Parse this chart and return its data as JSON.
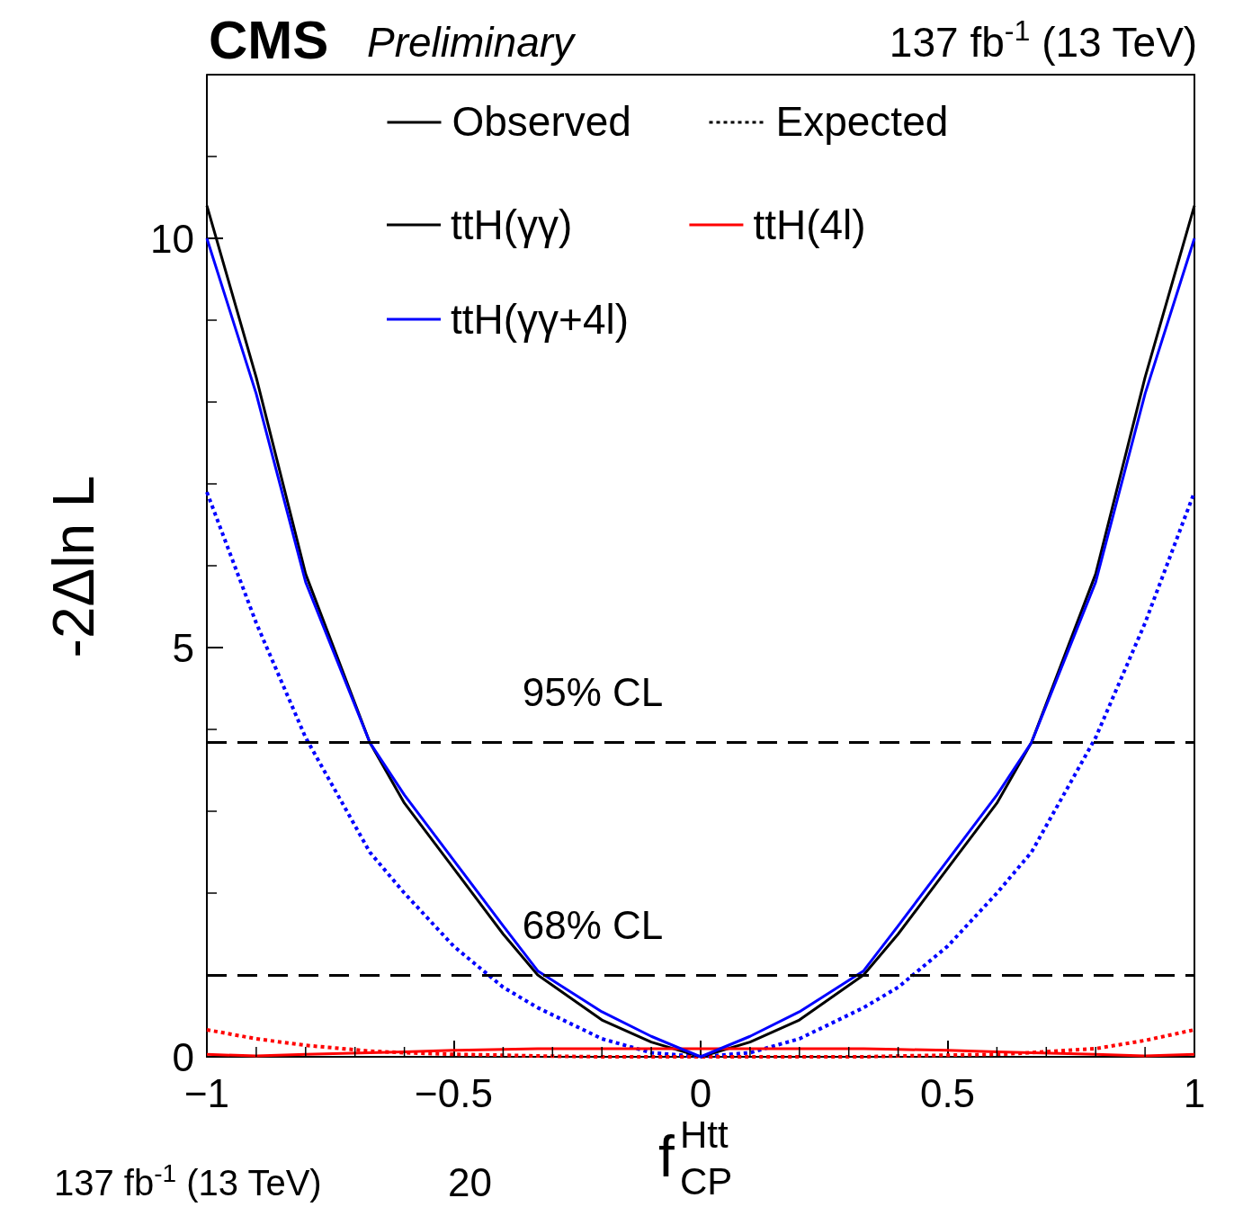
{
  "chart_data": {
    "type": "line",
    "title": "CMS",
    "subtitle": "Preliminary",
    "xlabel": "f$^{Htt}$$_{CP}$",
    "ylabel": "-2Δln L",
    "annotations": [
      "137 fb$^{-1}$ (13 TeV)",
      "Observed",
      "Expected",
      "137 fb$^{-1}$ (13 TeV)",
      "20"
    ],
    "xlim": [
      -1,
      1
    ],
    "xticks": [
      {
        "value": -1,
        "label": "−1"
      },
      {
        "value": -0.5,
        "label": "−0.5"
      },
      0,
      0.5,
      1
    ],
    "ylim": [
      0,
      12
    ],
    "yticks": [
      0,
      5,
      10
    ],
    "grid": false,
    "legend": "top",
    "marker": "none",
    "x": [
      -1,
      -0.9,
      -0.8,
      -0.67,
      -0.6,
      -0.5,
      -0.4,
      -0.33,
      -0.2,
      -0.1,
      0,
      0.1,
      0.2,
      0.33,
      0.4,
      0.5,
      0.6,
      0.67,
      0.8,
      0.9,
      1
    ],
    "series": [
      {
        "color": "#0000ff",
        "line_style": "dotted",
        "values": [
          6.9,
          5.3,
          3.9,
          2.5,
          2.0,
          1.35,
          0.85,
          0.6,
          0.22,
          0.05,
          0,
          0.05,
          0.22,
          0.6,
          0.85,
          1.35,
          2.0,
          2.5,
          3.9,
          5.3,
          6.9
        ]
      },
      {
        "color": "#ff0000",
        "line_style": "dotted",
        "values": [
          0.33,
          0.22,
          0.14,
          0.07,
          0.05,
          0.03,
          0.02,
          0.01,
          0,
          0,
          0,
          0,
          0,
          0,
          0.01,
          0.02,
          0.03,
          0.05,
          0.1,
          0.2,
          0.33
        ]
      },
      {
        "name": "ttH(γγ)",
        "color": "#000000",
        "line_style": "solid",
        "values": [
          10.4,
          8.3,
          5.9,
          3.84,
          3.1,
          2.3,
          1.5,
          1.0,
          0.45,
          0.18,
          0,
          0.18,
          0.45,
          1.0,
          1.5,
          2.3,
          3.1,
          3.84,
          5.9,
          8.3,
          10.4
        ]
      },
      {
        "name": "ttH(4l)",
        "color": "#ff0000",
        "line_style": "solid",
        "values": [
          0.03,
          0.01,
          0.03,
          0.05,
          0.06,
          0.08,
          0.09,
          0.1,
          0.1,
          0.1,
          0.1,
          0.1,
          0.1,
          0.1,
          0.09,
          0.08,
          0.06,
          0.05,
          0.03,
          0.01,
          0.03
        ]
      },
      {
        "name": "ttH(γγ+4l)",
        "color": "#0000ff",
        "line_style": "solid",
        "values": [
          10.0,
          8.1,
          5.8,
          3.84,
          3.2,
          2.4,
          1.6,
          1.05,
          0.55,
          0.25,
          0,
          0.25,
          0.55,
          1.05,
          1.6,
          2.4,
          3.2,
          3.84,
          5.8,
          8.1,
          10.0
        ]
      }
    ],
    "ref_lines": [
      {
        "axis": "y",
        "value": 3.84,
        "label": "95% CL",
        "color": "#000000",
        "line_style": "dashed"
      },
      {
        "axis": "y",
        "value": 1,
        "label": "68% CL",
        "color": "#000000",
        "line_style": "dashed"
      }
    ]
  }
}
